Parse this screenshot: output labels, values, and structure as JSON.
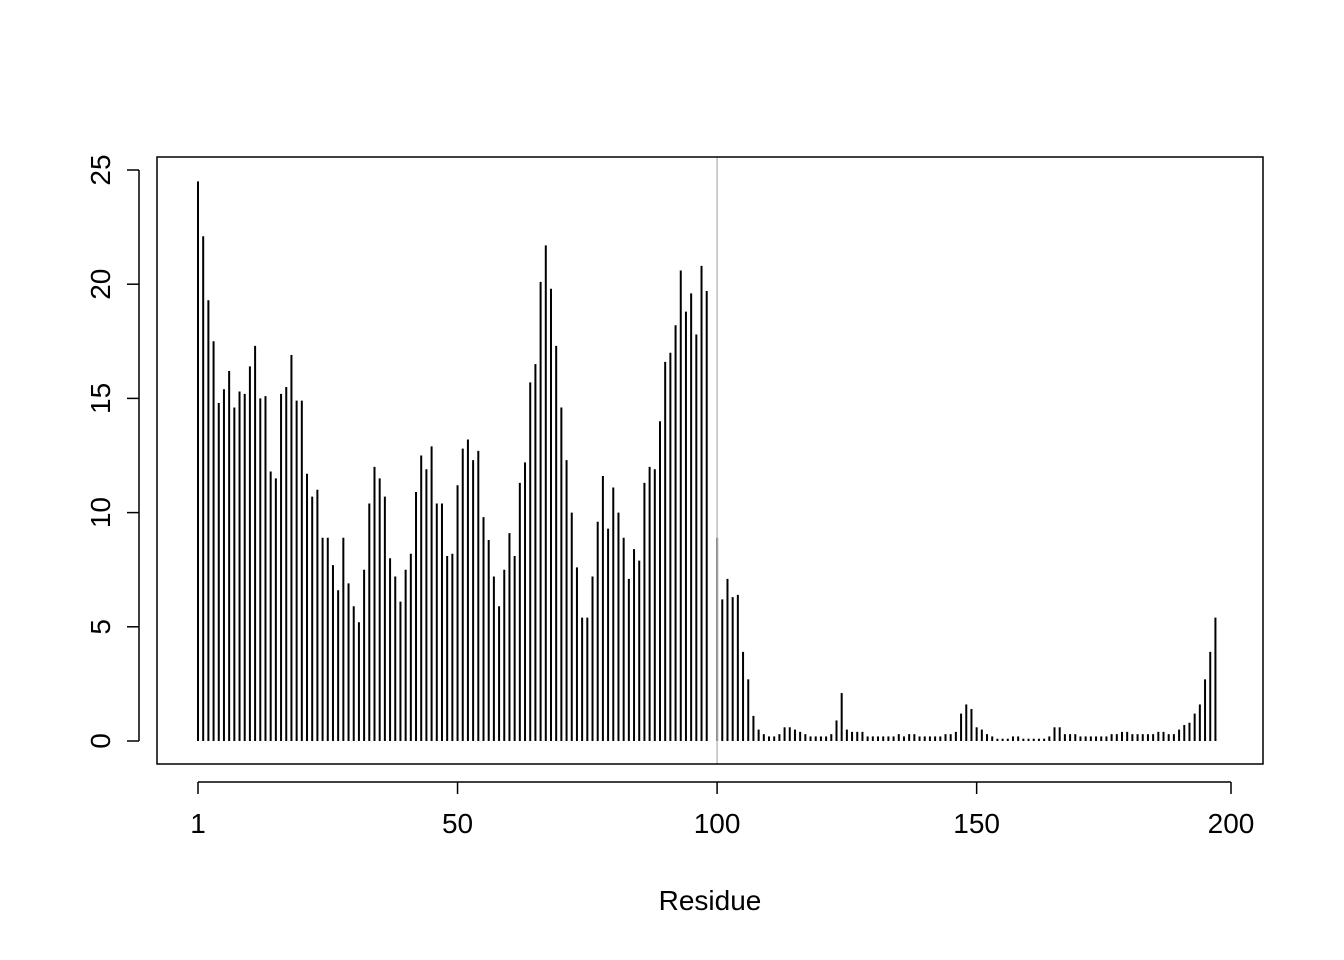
{
  "chart_data": {
    "type": "bar",
    "style": "histogram-lines",
    "xlabel": "Residue",
    "ylabel": "",
    "xlim": [
      1,
      198
    ],
    "ylim": [
      0,
      25
    ],
    "x_ticks": [
      {
        "value": 1,
        "label": "1"
      },
      {
        "value": 51,
        "label": "50"
      },
      {
        "value": 101,
        "label": "100"
      },
      {
        "value": 151,
        "label": "150"
      },
      {
        "value": 200,
        "label": "200"
      }
    ],
    "y_ticks": [
      {
        "value": 0,
        "label": "0"
      },
      {
        "value": 5,
        "label": "5"
      },
      {
        "value": 10,
        "label": "10"
      },
      {
        "value": 15,
        "label": "15"
      },
      {
        "value": 20,
        "label": "20"
      },
      {
        "value": 25,
        "label": "25"
      }
    ],
    "reference_line": {
      "x": 101,
      "color": "#bebebe"
    },
    "bar_color": "#000000",
    "values": [
      24.5,
      22.1,
      19.3,
      17.5,
      14.8,
      15.4,
      16.2,
      14.6,
      15.3,
      15.2,
      16.4,
      17.3,
      15.0,
      15.1,
      11.8,
      11.5,
      15.2,
      15.5,
      16.9,
      14.9,
      14.9,
      11.7,
      10.7,
      11.0,
      8.9,
      8.9,
      7.7,
      6.6,
      8.9,
      6.9,
      5.9,
      5.2,
      7.5,
      10.4,
      12.0,
      11.5,
      10.7,
      8.0,
      7.2,
      6.1,
      7.5,
      8.2,
      10.9,
      12.5,
      11.9,
      12.9,
      10.4,
      10.4,
      8.1,
      8.2,
      11.2,
      12.8,
      13.2,
      12.3,
      12.7,
      9.8,
      8.8,
      7.2,
      5.9,
      7.5,
      9.1,
      8.1,
      11.3,
      12.2,
      15.7,
      16.5,
      20.1,
      21.7,
      19.8,
      17.3,
      14.6,
      12.3,
      10.0,
      7.6,
      5.4,
      5.4,
      7.2,
      9.6,
      11.6,
      9.3,
      11.1,
      10.0,
      8.9,
      7.1,
      8.4,
      7.9,
      11.3,
      12.0,
      11.9,
      14.0,
      16.6,
      17.0,
      18.2,
      20.6,
      18.8,
      19.6,
      17.8,
      20.8,
      19.7,
      0.0,
      8.9,
      6.2,
      7.1,
      6.3,
      6.4,
      3.9,
      2.7,
      1.1,
      0.5,
      0.3,
      0.2,
      0.2,
      0.3,
      0.6,
      0.6,
      0.5,
      0.4,
      0.3,
      0.2,
      0.2,
      0.2,
      0.2,
      0.3,
      0.9,
      2.1,
      0.5,
      0.4,
      0.4,
      0.4,
      0.2,
      0.2,
      0.2,
      0.2,
      0.2,
      0.2,
      0.3,
      0.2,
      0.3,
      0.3,
      0.2,
      0.2,
      0.2,
      0.2,
      0.2,
      0.3,
      0.3,
      0.4,
      1.2,
      1.6,
      1.4,
      0.6,
      0.5,
      0.3,
      0.2,
      0.1,
      0.1,
      0.1,
      0.2,
      0.2,
      0.1,
      0.1,
      0.1,
      0.1,
      0.1,
      0.2,
      0.6,
      0.6,
      0.3,
      0.3,
      0.3,
      0.2,
      0.2,
      0.2,
      0.2,
      0.2,
      0.2,
      0.3,
      0.3,
      0.4,
      0.4,
      0.3,
      0.3,
      0.3,
      0.3,
      0.3,
      0.4,
      0.4,
      0.3,
      0.3,
      0.5,
      0.7,
      0.8,
      1.2,
      1.6,
      2.7,
      3.9,
      5.4
    ]
  }
}
